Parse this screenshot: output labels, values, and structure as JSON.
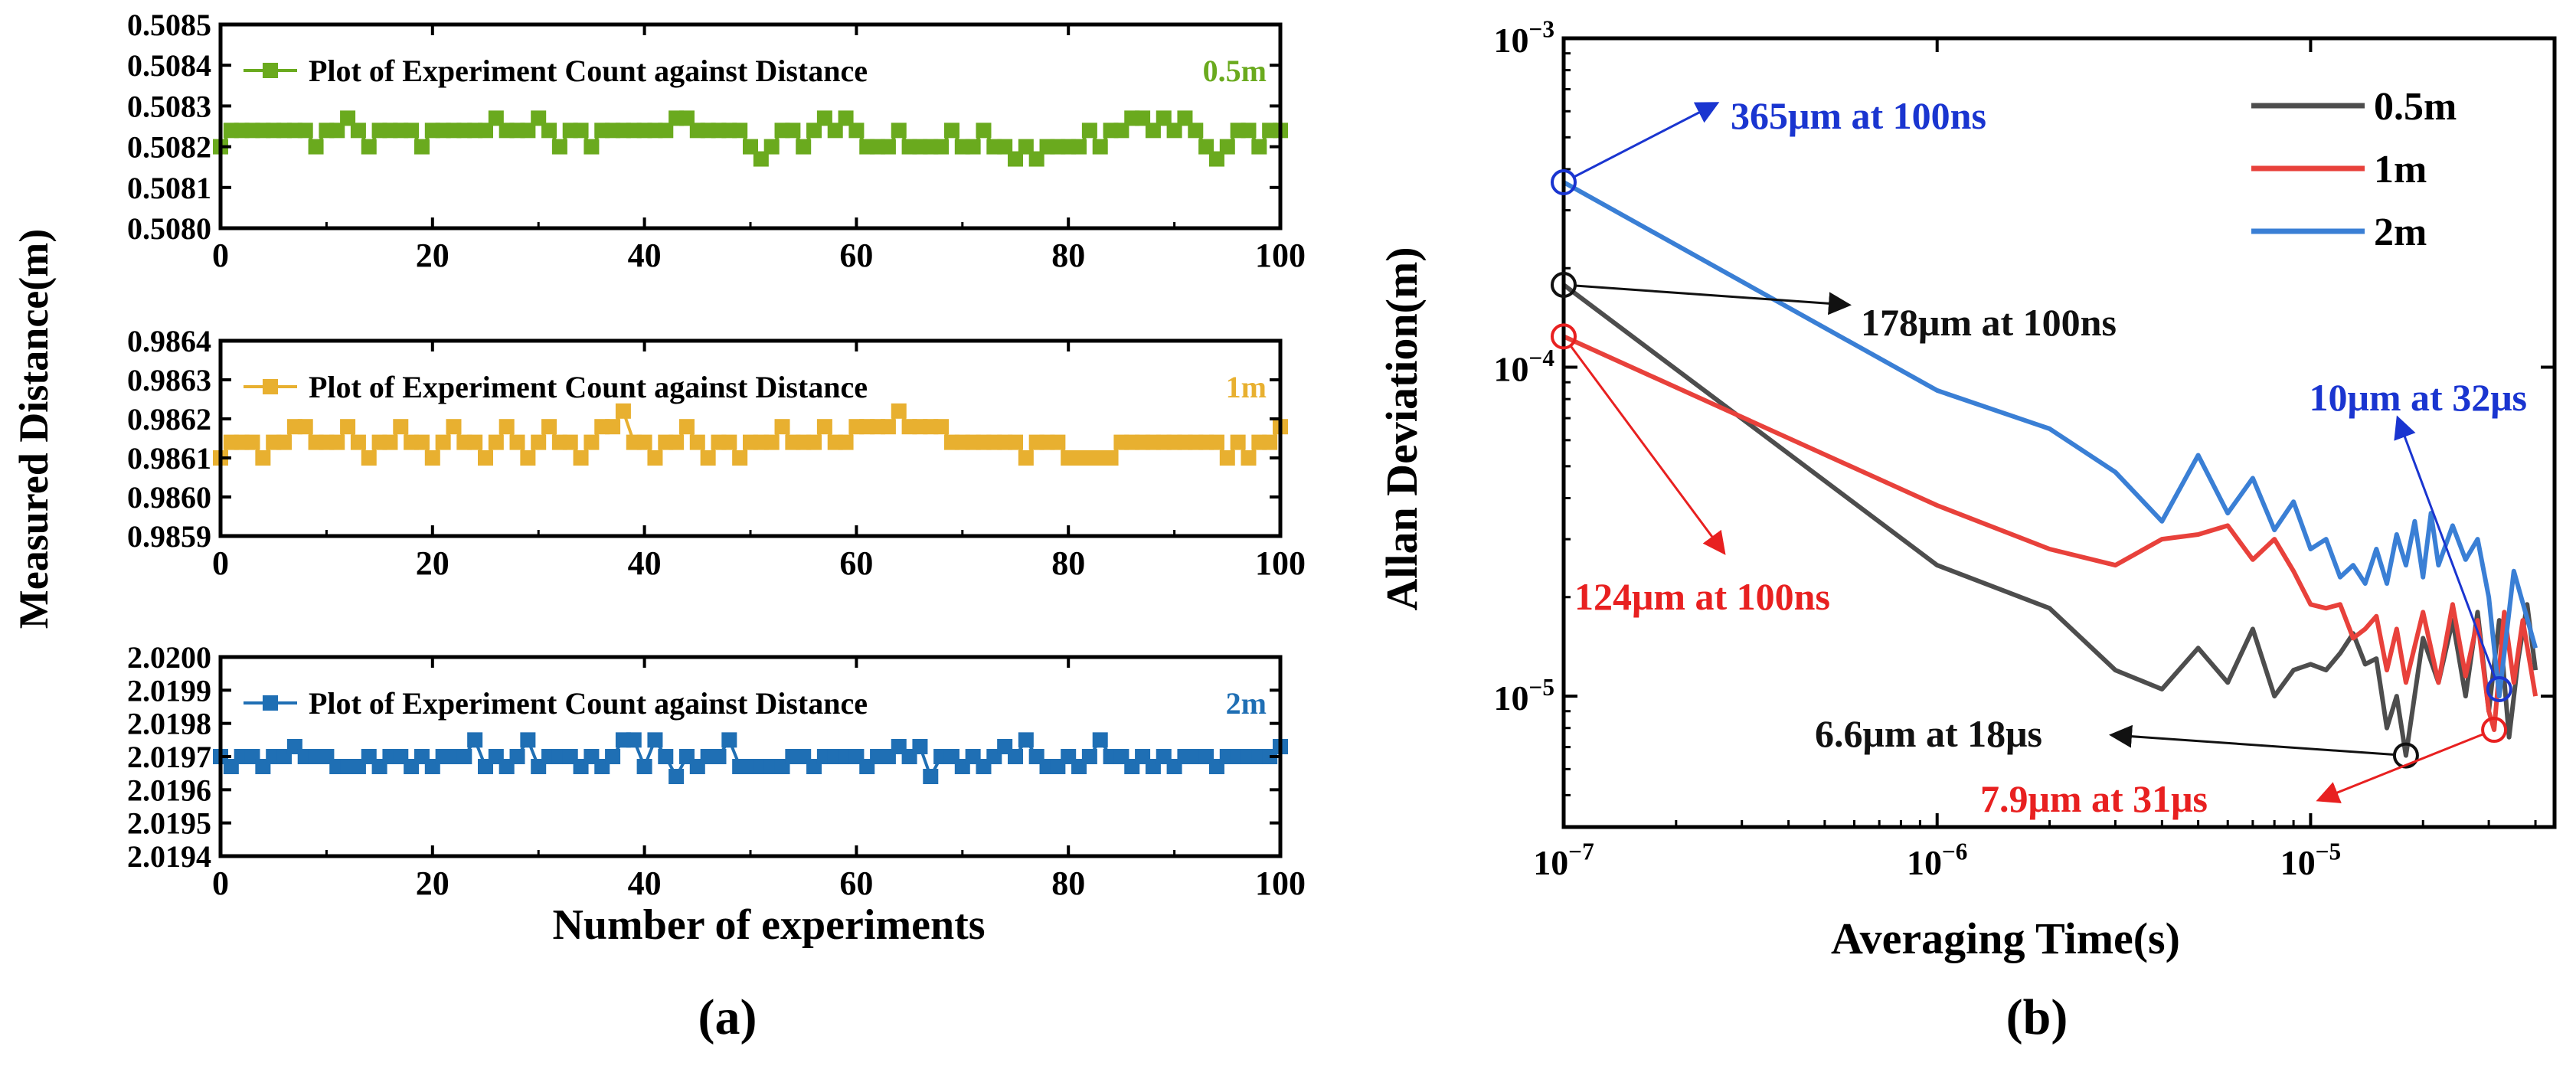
{
  "figure": {
    "panel_a_label": "(a)",
    "panel_b_label": "(b)"
  },
  "chart_data": [
    {
      "type": "line",
      "panel": "a-top",
      "legend": "Plot  of  Experiment Count against Distance",
      "tag": "0.5m",
      "color": "#6aaa1e",
      "xlim": [
        0,
        100
      ],
      "xticks": [
        0,
        20,
        40,
        60,
        80,
        100
      ],
      "ylim": [
        0.508,
        0.5085
      ],
      "yticks": [
        "0.5080",
        "0.5081",
        "0.5082",
        "0.5083",
        "0.5084",
        "0.5085"
      ],
      "values": [
        0.5082,
        0.50824,
        0.50824,
        0.50824,
        0.50824,
        0.50824,
        0.50824,
        0.50824,
        0.50824,
        0.5082,
        0.50824,
        0.50824,
        0.50827,
        0.50824,
        0.5082,
        0.50824,
        0.50824,
        0.50824,
        0.50824,
        0.5082,
        0.50824,
        0.50824,
        0.50824,
        0.50824,
        0.50824,
        0.50824,
        0.50827,
        0.50824,
        0.50824,
        0.50824,
        0.50827,
        0.50824,
        0.5082,
        0.50824,
        0.50824,
        0.5082,
        0.50824,
        0.50824,
        0.50824,
        0.50824,
        0.50824,
        0.50824,
        0.50824,
        0.50827,
        0.50827,
        0.50824,
        0.50824,
        0.50824,
        0.50824,
        0.50824,
        0.5082,
        0.50817,
        0.5082,
        0.50824,
        0.50824,
        0.5082,
        0.50824,
        0.50827,
        0.50824,
        0.50827,
        0.50824,
        0.5082,
        0.5082,
        0.5082,
        0.50824,
        0.5082,
        0.5082,
        0.5082,
        0.5082,
        0.50824,
        0.5082,
        0.5082,
        0.50824,
        0.5082,
        0.5082,
        0.50817,
        0.5082,
        0.50817,
        0.5082,
        0.5082,
        0.5082,
        0.5082,
        0.50824,
        0.5082,
        0.50824,
        0.50824,
        0.50827,
        0.50827,
        0.50824,
        0.50827,
        0.50824,
        0.50827,
        0.50824,
        0.5082,
        0.50817,
        0.5082,
        0.50824,
        0.50824,
        0.5082,
        0.50824,
        0.50824
      ]
    },
    {
      "type": "line",
      "panel": "a-middle",
      "legend": "Plot  of  Experiment Count against Distance",
      "tag": "1m",
      "color": "#e8b030",
      "xlim": [
        0,
        100
      ],
      "xticks": [
        0,
        20,
        40,
        60,
        80,
        100
      ],
      "ylim": [
        0.9859,
        0.9864
      ],
      "yticks": [
        "0.9859",
        "0.9860",
        "0.9861",
        "0.9862",
        "0.9863",
        "0.9864"
      ],
      "values": [
        0.9861,
        0.98614,
        0.98614,
        0.98614,
        0.9861,
        0.98614,
        0.98614,
        0.98618,
        0.98618,
        0.98614,
        0.98614,
        0.98614,
        0.98618,
        0.98614,
        0.9861,
        0.98614,
        0.98614,
        0.98618,
        0.98614,
        0.98614,
        0.9861,
        0.98614,
        0.98618,
        0.98614,
        0.98614,
        0.9861,
        0.98614,
        0.98618,
        0.98614,
        0.9861,
        0.98614,
        0.98618,
        0.98614,
        0.98614,
        0.9861,
        0.98614,
        0.98618,
        0.98618,
        0.98622,
        0.98614,
        0.98614,
        0.9861,
        0.98614,
        0.98614,
        0.98618,
        0.98614,
        0.9861,
        0.98614,
        0.98614,
        0.9861,
        0.98614,
        0.98614,
        0.98614,
        0.98618,
        0.98614,
        0.98614,
        0.98614,
        0.98618,
        0.98614,
        0.98614,
        0.98618,
        0.98618,
        0.98618,
        0.98618,
        0.98622,
        0.98618,
        0.98618,
        0.98618,
        0.98618,
        0.98614,
        0.98614,
        0.98614,
        0.98614,
        0.98614,
        0.98614,
        0.98614,
        0.9861,
        0.98614,
        0.98614,
        0.98614,
        0.9861,
        0.9861,
        0.9861,
        0.9861,
        0.9861,
        0.98614,
        0.98614,
        0.98614,
        0.98614,
        0.98614,
        0.98614,
        0.98614,
        0.98614,
        0.98614,
        0.98614,
        0.9861,
        0.98614,
        0.9861,
        0.98614,
        0.98614,
        0.98618
      ]
    },
    {
      "type": "line",
      "panel": "a-bottom",
      "legend": "Plot  of  Experiment Count against Distance",
      "tag": "2m",
      "color": "#1f6fb4",
      "xlim": [
        0,
        100
      ],
      "xticks": [
        0,
        20,
        40,
        60,
        80,
        100
      ],
      "ylim": [
        2.0194,
        2.02
      ],
      "yticks": [
        "2.0194",
        "2.0195",
        "2.0196",
        "2.0197",
        "2.0198",
        "2.0199",
        "2.0200"
      ],
      "values": [
        2.0197,
        2.01967,
        2.0197,
        2.0197,
        2.01967,
        2.0197,
        2.0197,
        2.01973,
        2.0197,
        2.0197,
        2.0197,
        2.01967,
        2.01967,
        2.01967,
        2.0197,
        2.01967,
        2.0197,
        2.0197,
        2.01967,
        2.0197,
        2.01967,
        2.0197,
        2.0197,
        2.0197,
        2.01975,
        2.01967,
        2.0197,
        2.01967,
        2.0197,
        2.01975,
        2.01967,
        2.0197,
        2.0197,
        2.0197,
        2.01967,
        2.0197,
        2.01967,
        2.0197,
        2.01975,
        2.01975,
        2.01967,
        2.01975,
        2.0197,
        2.01964,
        2.0197,
        2.01967,
        2.0197,
        2.0197,
        2.01975,
        2.01967,
        2.01967,
        2.01967,
        2.01967,
        2.01967,
        2.0197,
        2.0197,
        2.01967,
        2.0197,
        2.0197,
        2.0197,
        2.0197,
        2.01967,
        2.0197,
        2.0197,
        2.01973,
        2.0197,
        2.01973,
        2.01964,
        2.0197,
        2.0197,
        2.01967,
        2.0197,
        2.01967,
        2.0197,
        2.01973,
        2.0197,
        2.01975,
        2.0197,
        2.01967,
        2.01967,
        2.0197,
        2.01967,
        2.0197,
        2.01975,
        2.0197,
        2.0197,
        2.01967,
        2.0197,
        2.01967,
        2.0197,
        2.01967,
        2.0197,
        2.0197,
        2.0197,
        2.01967,
        2.0197,
        2.0197,
        2.0197,
        2.0197,
        2.0197,
        2.01973
      ]
    },
    {
      "type": "line",
      "panel": "b",
      "xscale": "log",
      "yscale": "log",
      "xlim": [
        1e-07,
        4.5e-05
      ],
      "ylim": [
        4e-06,
        0.001
      ],
      "xticks": [
        1e-07,
        1e-06,
        1e-05
      ],
      "xticks_labels": [
        [
          "10",
          "−7"
        ],
        [
          "10",
          "−6"
        ],
        [
          "10",
          "−5"
        ]
      ],
      "yticks": [
        1e-05,
        0.0001,
        0.001
      ],
      "yticks_labels": [
        [
          "10",
          "−5"
        ],
        [
          "10",
          "−4"
        ],
        [
          "10",
          "−3"
        ]
      ],
      "xlabel": "Averaging Time(s)",
      "ylabel": "Allan  Deviation(m)",
      "legend_position": "top-right",
      "series": [
        {
          "name": "0.5m",
          "color": "#4d4d4d",
          "x": [
            1e-07,
            1e-06,
            2e-06,
            3e-06,
            4e-06,
            5e-06,
            6e-06,
            7e-06,
            8e-06,
            9e-06,
            1e-05,
            1.1e-05,
            1.2e-05,
            1.3e-05,
            1.4e-05,
            1.5e-05,
            1.6e-05,
            1.7e-05,
            1.8e-05,
            2e-05,
            2.2e-05,
            2.4e-05,
            2.6e-05,
            2.8e-05,
            3e-05,
            3.2e-05,
            3.4e-05,
            3.6e-05,
            3.8e-05,
            4e-05
          ],
          "y": [
            0.000178,
            2.5e-05,
            1.85e-05,
            1.2e-05,
            1.05e-05,
            1.4e-05,
            1.1e-05,
            1.6e-05,
            1e-05,
            1.2e-05,
            1.25e-05,
            1.2e-05,
            1.35e-05,
            1.55e-05,
            1.25e-05,
            1.3e-05,
            8e-06,
            1e-05,
            6.6e-06,
            1.5e-05,
            1.1e-05,
            1.7e-05,
            1e-05,
            1.8e-05,
            9e-06,
            1.7e-05,
            7.5e-06,
            1.3e-05,
            1.9e-05,
            1.2e-05
          ]
        },
        {
          "name": "1m",
          "color": "#e8413b",
          "x": [
            1e-07,
            1e-06,
            2e-06,
            3e-06,
            4e-06,
            5e-06,
            6e-06,
            7e-06,
            8e-06,
            9e-06,
            1e-05,
            1.1e-05,
            1.2e-05,
            1.3e-05,
            1.4e-05,
            1.5e-05,
            1.6e-05,
            1.7e-05,
            1.8e-05,
            2e-05,
            2.2e-05,
            2.4e-05,
            2.6e-05,
            2.8e-05,
            3e-05,
            3.1e-05,
            3.3e-05,
            3.5e-05,
            3.7e-05,
            4e-05
          ],
          "y": [
            0.000124,
            3.8e-05,
            2.8e-05,
            2.5e-05,
            3e-05,
            3.1e-05,
            3.3e-05,
            2.6e-05,
            3e-05,
            2.4e-05,
            1.9e-05,
            1.85e-05,
            1.9e-05,
            1.5e-05,
            1.6e-05,
            1.75e-05,
            1.2e-05,
            1.6e-05,
            1.1e-05,
            1.8e-05,
            1.1e-05,
            1.9e-05,
            1.15e-05,
            1.7e-05,
            9e-06,
            7.9e-06,
            1.8e-05,
            1.1e-05,
            1.7e-05,
            1e-05
          ]
        },
        {
          "name": "2m",
          "color": "#3a7fd5",
          "x": [
            1e-07,
            1e-06,
            2e-06,
            3e-06,
            4e-06,
            5e-06,
            6e-06,
            7e-06,
            8e-06,
            9e-06,
            1e-05,
            1.1e-05,
            1.2e-05,
            1.3e-05,
            1.4e-05,
            1.5e-05,
            1.6e-05,
            1.7e-05,
            1.8e-05,
            1.9e-05,
            2e-05,
            2.1e-05,
            2.2e-05,
            2.4e-05,
            2.6e-05,
            2.8e-05,
            3e-05,
            3.2e-05,
            3.5e-05,
            4e-05
          ],
          "y": [
            0.000365,
            8.5e-05,
            6.5e-05,
            4.8e-05,
            3.4e-05,
            5.4e-05,
            3.6e-05,
            4.6e-05,
            3.2e-05,
            3.9e-05,
            2.8e-05,
            3e-05,
            2.3e-05,
            2.5e-05,
            2.2e-05,
            2.8e-05,
            2.2e-05,
            3.1e-05,
            2.5e-05,
            3.4e-05,
            2.3e-05,
            3.6e-05,
            2.5e-05,
            3.3e-05,
            2.6e-05,
            3e-05,
            2e-05,
            1e-05,
            2.4e-05,
            1.4e-05
          ]
        }
      ],
      "annotations": [
        {
          "text": "365μm at 100ns",
          "color": "#1a35d0",
          "x": 1e-07,
          "y": 0.000365,
          "marker_color": "#1a35d0"
        },
        {
          "text": "178μm at 100ns",
          "color": "#111111",
          "x": 1e-07,
          "y": 0.000178,
          "marker_color": "#111111"
        },
        {
          "text": "124μm at 100ns",
          "color": "#e82020",
          "x": 1e-07,
          "y": 0.000124,
          "marker_color": "#e82020"
        },
        {
          "text": "10μm at 32μs",
          "color": "#1a35d0",
          "x": 3.2e-05,
          "y": 1.05e-05,
          "marker_color": "#1a35d0"
        },
        {
          "text": "6.6μm at 18μs",
          "color": "#111111",
          "x": 1.8e-05,
          "y": 6.6e-06,
          "marker_color": "#111111"
        },
        {
          "text": "7.9μm at 31μs",
          "color": "#e82020",
          "x": 3.1e-05,
          "y": 7.9e-06,
          "marker_color": "#e82020"
        }
      ]
    }
  ],
  "shared_axes": {
    "a_ylabel": "Measured Distance(m)",
    "a_xlabel": "Number of experiments"
  }
}
